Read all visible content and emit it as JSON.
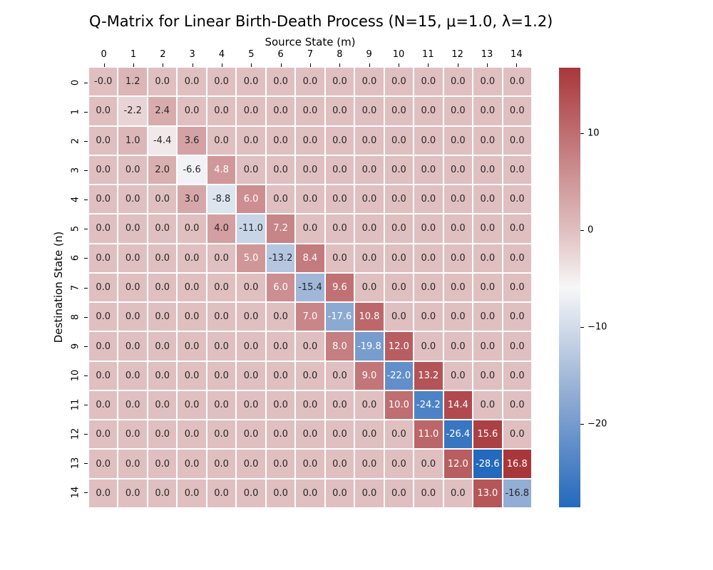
{
  "chart_data": {
    "type": "heatmap",
    "title": "Q-Matrix for Linear Birth-Death Process (N=15, μ=1.0, λ=1.2)",
    "xlabel": "Source State (m)",
    "ylabel": "Destination State (n)",
    "x_tick_labels": [
      "0",
      "1",
      "2",
      "3",
      "4",
      "5",
      "6",
      "7",
      "8",
      "9",
      "10",
      "11",
      "12",
      "13",
      "14"
    ],
    "y_tick_labels": [
      "0",
      "1",
      "2",
      "3",
      "4",
      "5",
      "6",
      "7",
      "8",
      "9",
      "10",
      "11",
      "12",
      "13",
      "14"
    ],
    "vmin": -28.6,
    "vmax": 16.8,
    "values": [
      [
        -0.0,
        1.2,
        0.0,
        0.0,
        0.0,
        0.0,
        0.0,
        0.0,
        0.0,
        0.0,
        0.0,
        0.0,
        0.0,
        0.0,
        0.0
      ],
      [
        0.0,
        -2.2,
        2.4,
        0.0,
        0.0,
        0.0,
        0.0,
        0.0,
        0.0,
        0.0,
        0.0,
        0.0,
        0.0,
        0.0,
        0.0
      ],
      [
        0.0,
        1.0,
        -4.4,
        3.6,
        0.0,
        0.0,
        0.0,
        0.0,
        0.0,
        0.0,
        0.0,
        0.0,
        0.0,
        0.0,
        0.0
      ],
      [
        0.0,
        0.0,
        2.0,
        -6.6,
        4.8,
        0.0,
        0.0,
        0.0,
        0.0,
        0.0,
        0.0,
        0.0,
        0.0,
        0.0,
        0.0
      ],
      [
        0.0,
        0.0,
        0.0,
        3.0,
        -8.8,
        6.0,
        0.0,
        0.0,
        0.0,
        0.0,
        0.0,
        0.0,
        0.0,
        0.0,
        0.0
      ],
      [
        0.0,
        0.0,
        0.0,
        0.0,
        4.0,
        -11.0,
        7.2,
        0.0,
        0.0,
        0.0,
        0.0,
        0.0,
        0.0,
        0.0,
        0.0
      ],
      [
        0.0,
        0.0,
        0.0,
        0.0,
        0.0,
        5.0,
        -13.2,
        8.4,
        0.0,
        0.0,
        0.0,
        0.0,
        0.0,
        0.0,
        0.0
      ],
      [
        0.0,
        0.0,
        0.0,
        0.0,
        0.0,
        0.0,
        6.0,
        -15.4,
        9.6,
        0.0,
        0.0,
        0.0,
        0.0,
        0.0,
        0.0
      ],
      [
        0.0,
        0.0,
        0.0,
        0.0,
        0.0,
        0.0,
        0.0,
        7.0,
        -17.6,
        10.8,
        0.0,
        0.0,
        0.0,
        0.0,
        0.0
      ],
      [
        0.0,
        0.0,
        0.0,
        0.0,
        0.0,
        0.0,
        0.0,
        0.0,
        8.0,
        -19.8,
        12.0,
        0.0,
        0.0,
        0.0,
        0.0
      ],
      [
        0.0,
        0.0,
        0.0,
        0.0,
        0.0,
        0.0,
        0.0,
        0.0,
        0.0,
        9.0,
        -22.0,
        13.2,
        0.0,
        0.0,
        0.0
      ],
      [
        0.0,
        0.0,
        0.0,
        0.0,
        0.0,
        0.0,
        0.0,
        0.0,
        0.0,
        0.0,
        10.0,
        -24.2,
        14.4,
        0.0,
        0.0
      ],
      [
        0.0,
        0.0,
        0.0,
        0.0,
        0.0,
        0.0,
        0.0,
        0.0,
        0.0,
        0.0,
        0.0,
        11.0,
        -26.4,
        15.6,
        0.0
      ],
      [
        0.0,
        0.0,
        0.0,
        0.0,
        0.0,
        0.0,
        0.0,
        0.0,
        0.0,
        0.0,
        0.0,
        0.0,
        12.0,
        -28.6,
        16.8
      ],
      [
        0.0,
        0.0,
        0.0,
        0.0,
        0.0,
        0.0,
        0.0,
        0.0,
        0.0,
        0.0,
        0.0,
        0.0,
        0.0,
        13.0,
        -16.8
      ]
    ],
    "cell_labels": [
      [
        "-0.0",
        "1.2",
        "0.0",
        "0.0",
        "0.0",
        "0.0",
        "0.0",
        "0.0",
        "0.0",
        "0.0",
        "0.0",
        "0.0",
        "0.0",
        "0.0",
        "0.0"
      ],
      [
        "0.0",
        "-2.2",
        "2.4",
        "0.0",
        "0.0",
        "0.0",
        "0.0",
        "0.0",
        "0.0",
        "0.0",
        "0.0",
        "0.0",
        "0.0",
        "0.0",
        "0.0"
      ],
      [
        "0.0",
        "1.0",
        "-4.4",
        "3.6",
        "0.0",
        "0.0",
        "0.0",
        "0.0",
        "0.0",
        "0.0",
        "0.0",
        "0.0",
        "0.0",
        "0.0",
        "0.0"
      ],
      [
        "0.0",
        "0.0",
        "2.0",
        "-6.6",
        "4.8",
        "0.0",
        "0.0",
        "0.0",
        "0.0",
        "0.0",
        "0.0",
        "0.0",
        "0.0",
        "0.0",
        "0.0"
      ],
      [
        "0.0",
        "0.0",
        "0.0",
        "3.0",
        "-8.8",
        "6.0",
        "0.0",
        "0.0",
        "0.0",
        "0.0",
        "0.0",
        "0.0",
        "0.0",
        "0.0",
        "0.0"
      ],
      [
        "0.0",
        "0.0",
        "0.0",
        "0.0",
        "4.0",
        "-11.0",
        "7.2",
        "0.0",
        "0.0",
        "0.0",
        "0.0",
        "0.0",
        "0.0",
        "0.0",
        "0.0"
      ],
      [
        "0.0",
        "0.0",
        "0.0",
        "0.0",
        "0.0",
        "5.0",
        "-13.2",
        "8.4",
        "0.0",
        "0.0",
        "0.0",
        "0.0",
        "0.0",
        "0.0",
        "0.0"
      ],
      [
        "0.0",
        "0.0",
        "0.0",
        "0.0",
        "0.0",
        "0.0",
        "6.0",
        "-15.4",
        "9.6",
        "0.0",
        "0.0",
        "0.0",
        "0.0",
        "0.0",
        "0.0"
      ],
      [
        "0.0",
        "0.0",
        "0.0",
        "0.0",
        "0.0",
        "0.0",
        "0.0",
        "7.0",
        "-17.6",
        "10.8",
        "0.0",
        "0.0",
        "0.0",
        "0.0",
        "0.0"
      ],
      [
        "0.0",
        "0.0",
        "0.0",
        "0.0",
        "0.0",
        "0.0",
        "0.0",
        "0.0",
        "8.0",
        "-19.8",
        "12.0",
        "0.0",
        "0.0",
        "0.0",
        "0.0"
      ],
      [
        "0.0",
        "0.0",
        "0.0",
        "0.0",
        "0.0",
        "0.0",
        "0.0",
        "0.0",
        "0.0",
        "9.0",
        "-22.0",
        "13.2",
        "0.0",
        "0.0",
        "0.0"
      ],
      [
        "0.0",
        "0.0",
        "0.0",
        "0.0",
        "0.0",
        "0.0",
        "0.0",
        "0.0",
        "0.0",
        "0.0",
        "10.0",
        "-24.2",
        "14.4",
        "0.0",
        "0.0"
      ],
      [
        "0.0",
        "0.0",
        "0.0",
        "0.0",
        "0.0",
        "0.0",
        "0.0",
        "0.0",
        "0.0",
        "0.0",
        "0.0",
        "11.0",
        "-26.4",
        "15.6",
        "0.0"
      ],
      [
        "0.0",
        "0.0",
        "0.0",
        "0.0",
        "0.0",
        "0.0",
        "0.0",
        "0.0",
        "0.0",
        "0.0",
        "0.0",
        "0.0",
        "12.0",
        "-28.6",
        "16.8"
      ],
      [
        "0.0",
        "0.0",
        "0.0",
        "0.0",
        "0.0",
        "0.0",
        "0.0",
        "0.0",
        "0.0",
        "0.0",
        "0.0",
        "0.0",
        "0.0",
        "13.0",
        "-16.8"
      ]
    ],
    "colorbar_ticks": [
      {
        "value": 10,
        "label": "10"
      },
      {
        "value": 0,
        "label": "0"
      },
      {
        "value": -10,
        "label": "−10"
      },
      {
        "value": -20,
        "label": "−20"
      }
    ],
    "colormap_stops": [
      {
        "t": 0.0,
        "color": "#2369bd"
      },
      {
        "t": 0.25,
        "color": "#8fabd3"
      },
      {
        "t": 0.5,
        "color": "#f7f7f7"
      },
      {
        "t": 0.63,
        "color": "#e0bfc0"
      },
      {
        "t": 1.0,
        "color": "#a8373b"
      }
    ],
    "annotation_text_colors": {
      "dark": "#262626",
      "light": "#ffffff"
    },
    "luminance_threshold": 0.408,
    "grid_line_color": "#ffffff",
    "legend_position": "right",
    "xaxis_position": "top"
  }
}
